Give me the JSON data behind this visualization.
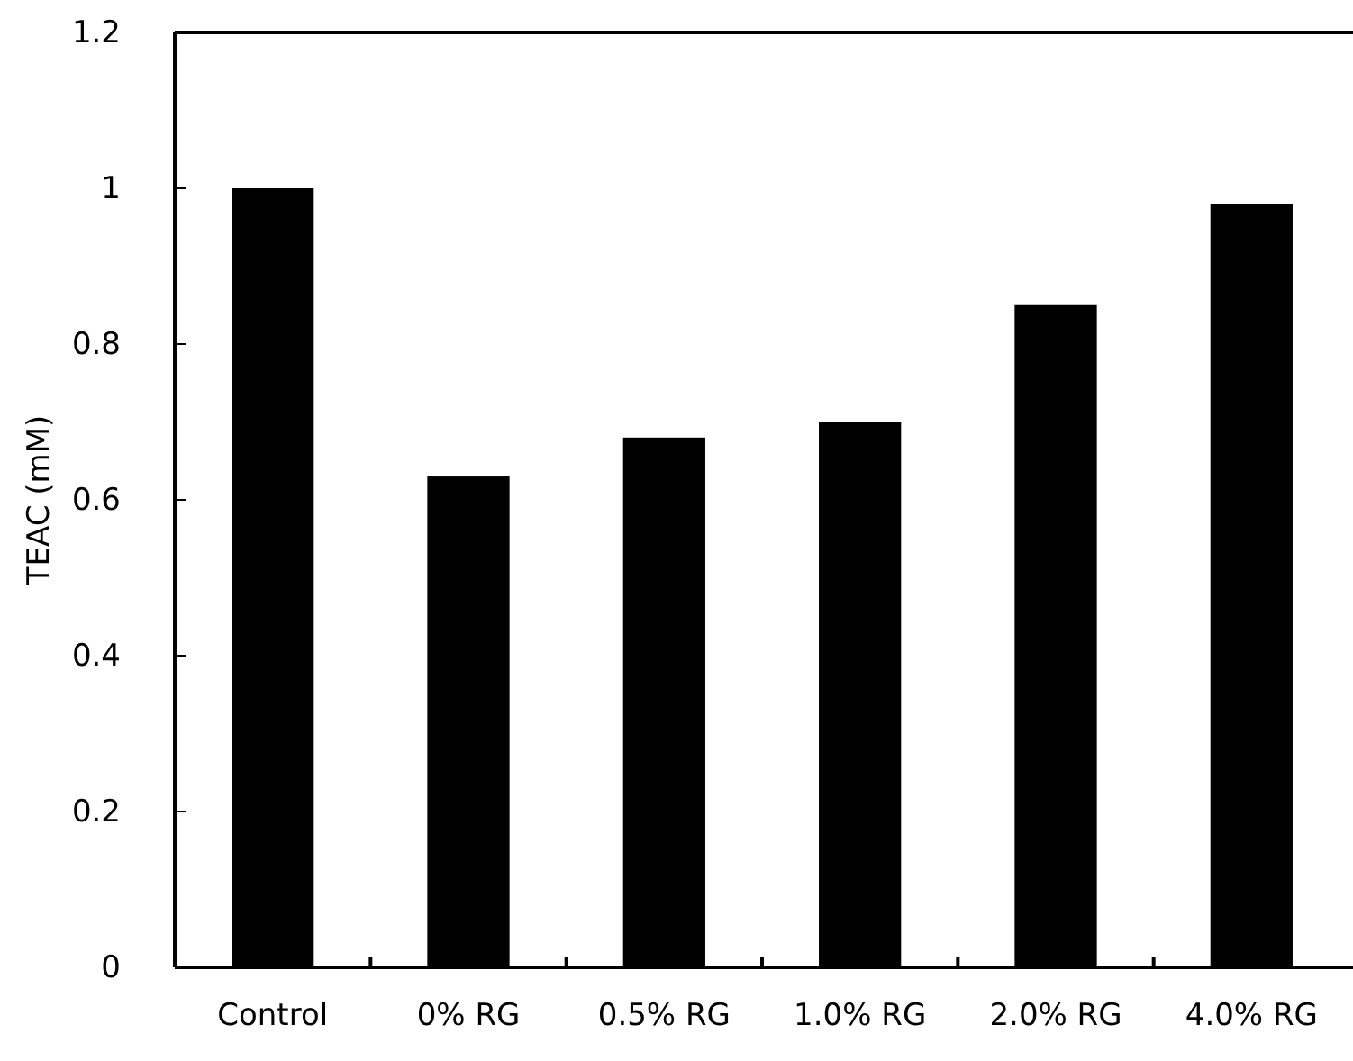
{
  "chart_data": {
    "type": "bar",
    "ylabel": "TEAC (mM)",
    "categories": [
      "Control",
      "0% RG",
      "0.5% RG",
      "1.0% RG",
      "2.0% RG",
      "4.0% RG"
    ],
    "values": [
      1.0,
      0.63,
      0.68,
      0.7,
      0.85,
      0.98
    ],
    "color": "#000000",
    "ylim": [
      0,
      1.2
    ],
    "yticks": [
      0,
      0.2,
      0.4,
      0.6,
      0.8,
      1,
      1.2
    ],
    "grid": false
  }
}
